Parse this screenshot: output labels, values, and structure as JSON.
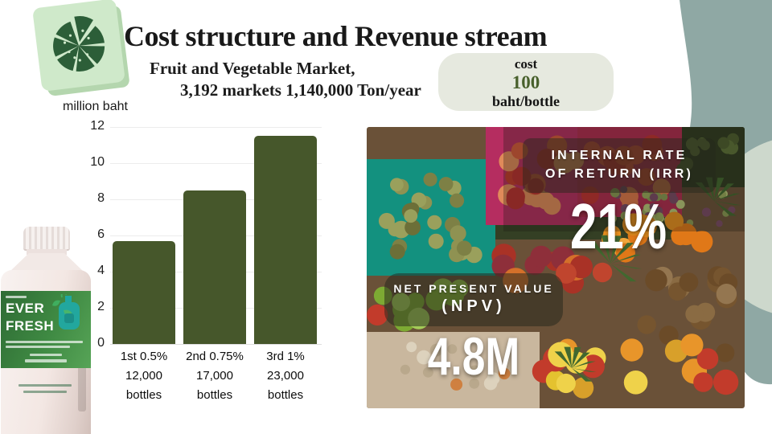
{
  "header": {
    "title": "Cost structure and Revenue stream",
    "subtitle_line1": "Fruit and Vegetable Market,",
    "subtitle_line2": "3,192 markets 1,140,000 Ton/year"
  },
  "cost_badge": {
    "label": "cost",
    "value": "100",
    "unit": "baht/bottle"
  },
  "chart_data": {
    "type": "bar",
    "title": "",
    "ylabel": "million baht",
    "categories": [
      [
        "1st 0.5%",
        "12,000",
        "bottles"
      ],
      [
        "2nd 0.75%",
        "17,000",
        "bottles"
      ],
      [
        "3rd 1%",
        "23,000",
        "bottles"
      ]
    ],
    "values": [
      5.7,
      8.5,
      11.5
    ],
    "yticks": [
      0,
      2,
      4,
      6,
      8,
      10,
      12
    ],
    "ylim": [
      0,
      12
    ],
    "grid": true,
    "legend": "none",
    "bar_color": "#46572b"
  },
  "metrics": {
    "irr": {
      "label_line1": "INTERNAL RATE",
      "label_line2": "OF RETURN (IRR)",
      "value": "21%"
    },
    "npv": {
      "label_line1": "NET PRESENT VALUE",
      "label_line2": "(NPV)",
      "value": "4.8M"
    }
  },
  "product": {
    "brand_line1": "EVER",
    "brand_line2": "FRESH"
  },
  "icons": {
    "logo": "pie-chart-icon",
    "bottle_logo": "leaf-flask-icon"
  },
  "colors": {
    "bar": "#46572b",
    "accent_green": "#48602c",
    "badge_bg": "#e6e9df",
    "teal_blob": "#8fa8a4",
    "sage_blob": "#cdd8cc",
    "label_green": "#3f8a43",
    "tile_green": "#cfe9ca",
    "pie_green": "#2c5e38"
  }
}
